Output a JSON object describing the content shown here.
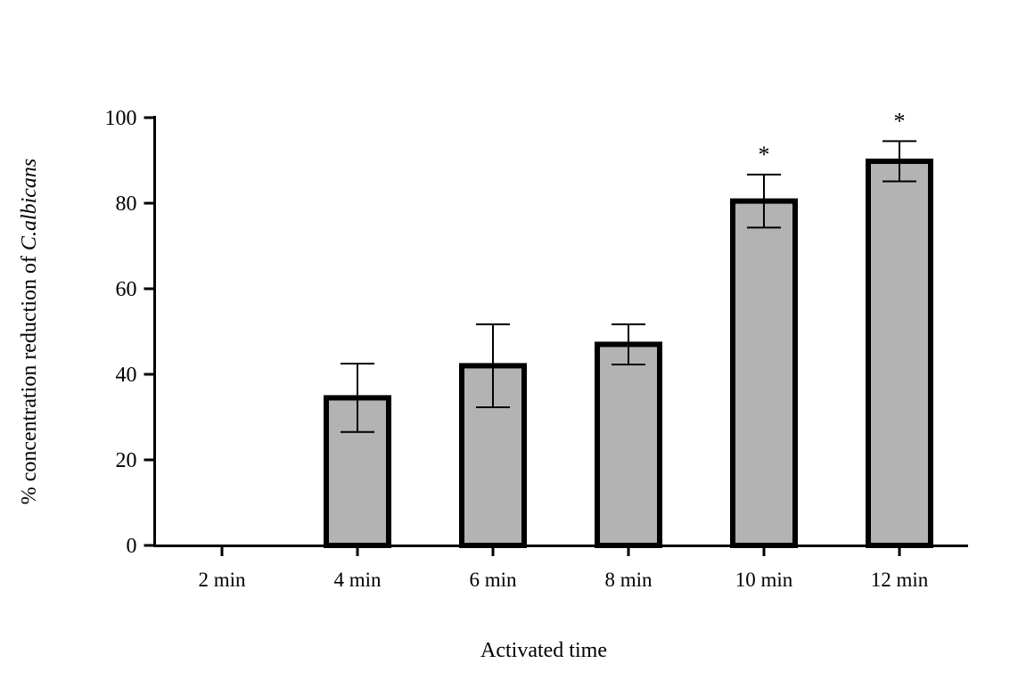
{
  "chart_data": {
    "type": "bar",
    "categories": [
      "2 min",
      "4 min",
      "6 min",
      "8 min",
      "10 min",
      "12 min"
    ],
    "values": [
      0,
      34.5,
      42,
      47,
      80.5,
      89.8
    ],
    "error": [
      0,
      8,
      9.7,
      4.7,
      6.2,
      4.7
    ],
    "annotations": [
      "",
      "",
      "",
      "",
      "*",
      "*"
    ],
    "xlabel": "Activated time",
    "ylabel": {
      "prefix": "% concentration reduction  of ",
      "italic": "C.albicans"
    },
    "ylim": [
      0,
      100
    ],
    "yticks": [
      0,
      20,
      40,
      60,
      80,
      100
    ],
    "grid": false,
    "legend": "none",
    "colors": {
      "bar_fill": "#b3b3b3",
      "bar_stroke": "#000000",
      "axis": "#000000"
    }
  }
}
